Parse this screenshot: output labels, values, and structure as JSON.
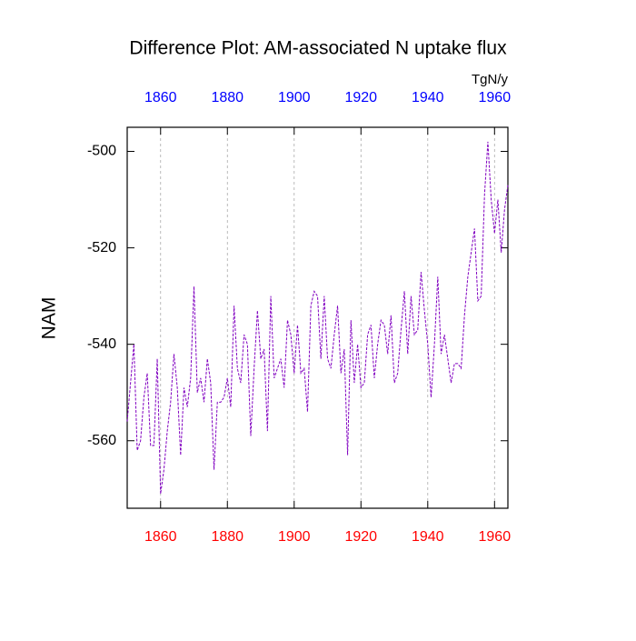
{
  "chart_data": {
    "type": "line",
    "title": "Difference Plot: AM-associated N uptake flux",
    "units_label": "TgN/y",
    "y_label": "NAM",
    "x": [
      1850,
      1851,
      1852,
      1853,
      1854,
      1855,
      1856,
      1857,
      1858,
      1859,
      1860,
      1861,
      1862,
      1863,
      1864,
      1865,
      1866,
      1867,
      1868,
      1869,
      1870,
      1871,
      1872,
      1873,
      1874,
      1875,
      1876,
      1877,
      1878,
      1879,
      1880,
      1881,
      1882,
      1883,
      1884,
      1885,
      1886,
      1887,
      1888,
      1889,
      1890,
      1891,
      1892,
      1893,
      1894,
      1895,
      1896,
      1897,
      1898,
      1899,
      1900,
      1901,
      1902,
      1903,
      1904,
      1905,
      1906,
      1907,
      1908,
      1909,
      1910,
      1911,
      1912,
      1913,
      1914,
      1915,
      1916,
      1917,
      1918,
      1919,
      1920,
      1921,
      1922,
      1923,
      1924,
      1925,
      1926,
      1927,
      1928,
      1929,
      1930,
      1931,
      1932,
      1933,
      1934,
      1935,
      1936,
      1937,
      1938,
      1939,
      1940,
      1941,
      1942,
      1943,
      1944,
      1945,
      1946,
      1947,
      1948,
      1949,
      1950,
      1951,
      1952,
      1953,
      1954,
      1955,
      1956,
      1957,
      1958,
      1959,
      1960,
      1961,
      1962,
      1963,
      1964
    ],
    "values": [
      -556,
      -548,
      -540,
      -562,
      -560,
      -551,
      -546,
      -561,
      -561,
      -543,
      -571,
      -566,
      -558,
      -552,
      -542,
      -549,
      -563,
      -549,
      -553,
      -547,
      -528,
      -550,
      -547,
      -552,
      -543,
      -548,
      -566,
      -552,
      -552,
      -551,
      -547,
      -553,
      -532,
      -545,
      -548,
      -538,
      -540,
      -559,
      -545,
      -533,
      -543,
      -541,
      -558,
      -530,
      -547,
      -545,
      -543,
      -549,
      -535,
      -538,
      -546,
      -536,
      -546,
      -545,
      -554,
      -532,
      -529,
      -530,
      -543,
      -530,
      -543,
      -545,
      -538,
      -532,
      -546,
      -541,
      -563,
      -535,
      -548,
      -540,
      -549,
      -548,
      -538,
      -536,
      -547,
      -540,
      -535,
      -536,
      -542,
      -534,
      -548,
      -546,
      -537,
      -529,
      -542,
      -530,
      -538,
      -537,
      -525,
      -533,
      -540,
      -551,
      -540,
      -526,
      -542,
      -538,
      -543,
      -548,
      -544,
      -544,
      -545,
      -534,
      -526,
      -521,
      -516,
      -531,
      -530,
      -509,
      -498,
      -510,
      -517,
      -510,
      -521,
      -512,
      -507
    ],
    "color": "#8000c0",
    "xlim": [
      1850,
      1964
    ],
    "ylim": [
      -574,
      -495
    ],
    "xticks": [
      1860,
      1880,
      1900,
      1920,
      1940,
      1960
    ],
    "yticks": [
      -560,
      -540,
      -520,
      -500
    ],
    "bottom_axis_color": "#ff0000",
    "top_axis_color": "#0000ff",
    "grid": true
  }
}
